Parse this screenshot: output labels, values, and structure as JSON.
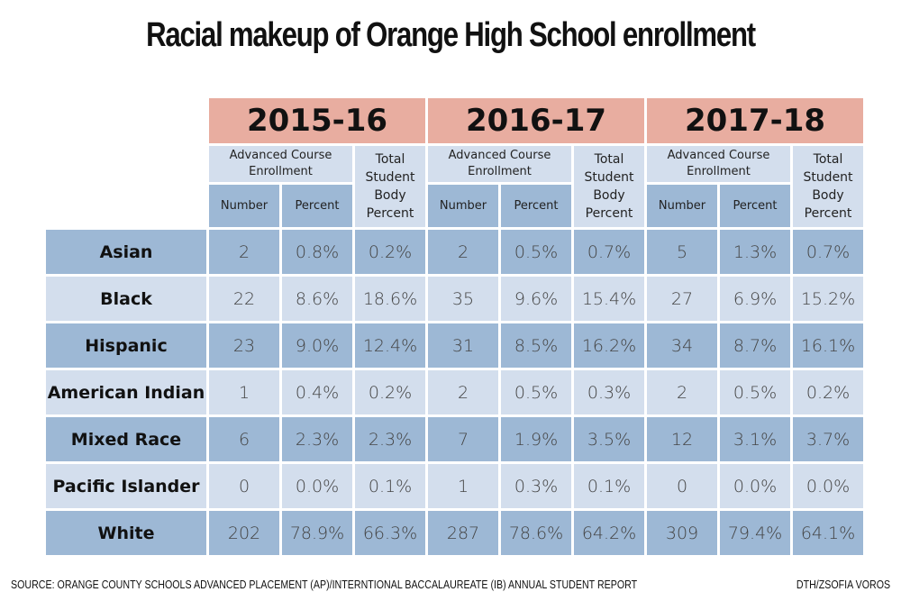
{
  "title": "Racial makeup of Orange High School enrollment",
  "chart_data": {
    "type": "table",
    "title": "Racial makeup of Orange High School enrollment",
    "years": [
      "2015-16",
      "2016-17",
      "2017-18"
    ],
    "group_header": "Advanced Course Enrollment",
    "subcolumns": [
      "Number",
      "Percent"
    ],
    "total_header": "Total Student Body Percent",
    "total_header_lines": [
      "Total",
      "Student",
      "Body",
      "Percent"
    ],
    "rows": [
      {
        "label": "Asian",
        "values": [
          "2",
          "0.8%",
          "0.2%",
          "2",
          "0.5%",
          "0.7%",
          "5",
          "1.3%",
          "0.7%"
        ]
      },
      {
        "label": "Black",
        "values": [
          "22",
          "8.6%",
          "18.6%",
          "35",
          "9.6%",
          "15.4%",
          "27",
          "6.9%",
          "15.2%"
        ]
      },
      {
        "label": "Hispanic",
        "values": [
          "23",
          "9.0%",
          "12.4%",
          "31",
          "8.5%",
          "16.2%",
          "34",
          "8.7%",
          "16.1%"
        ]
      },
      {
        "label": "American Indian",
        "values": [
          "1",
          "0.4%",
          "0.2%",
          "2",
          "0.5%",
          "0.3%",
          "2",
          "0.5%",
          "0.2%"
        ]
      },
      {
        "label": "Mixed Race",
        "values": [
          "6",
          "2.3%",
          "2.3%",
          "7",
          "1.9%",
          "3.5%",
          "12",
          "3.1%",
          "3.7%"
        ]
      },
      {
        "label": "Pacific Islander",
        "values": [
          "0",
          "0.0%",
          "0.1%",
          "1",
          "0.3%",
          "0.1%",
          "0",
          "0.0%",
          "0.0%"
        ]
      },
      {
        "label": "White",
        "values": [
          "202",
          "78.9%",
          "66.3%",
          "287",
          "78.6%",
          "64.2%",
          "309",
          "79.4%",
          "64.1%"
        ]
      }
    ]
  },
  "headers": {
    "group_line1": "Advanced Course",
    "group_line2": "Enrollment",
    "number": "Number",
    "percent": "Percent",
    "tsb1": "Total",
    "tsb2": "Student",
    "tsb3": "Body",
    "tsb4": "Percent"
  },
  "colors": {
    "year_header": "#e8ada0",
    "light_blue": "#d3deed",
    "dark_blue": "#9db8d5"
  },
  "footer": {
    "source": "SOURCE: ORANGE COUNTY SCHOOLS ADVANCED PLACEMENT (AP)/INTERNTIONAL BACCALAUREATE (IB) ANNUAL STUDENT REPORT",
    "credit": "DTH/ZSOFIA VOROS"
  }
}
